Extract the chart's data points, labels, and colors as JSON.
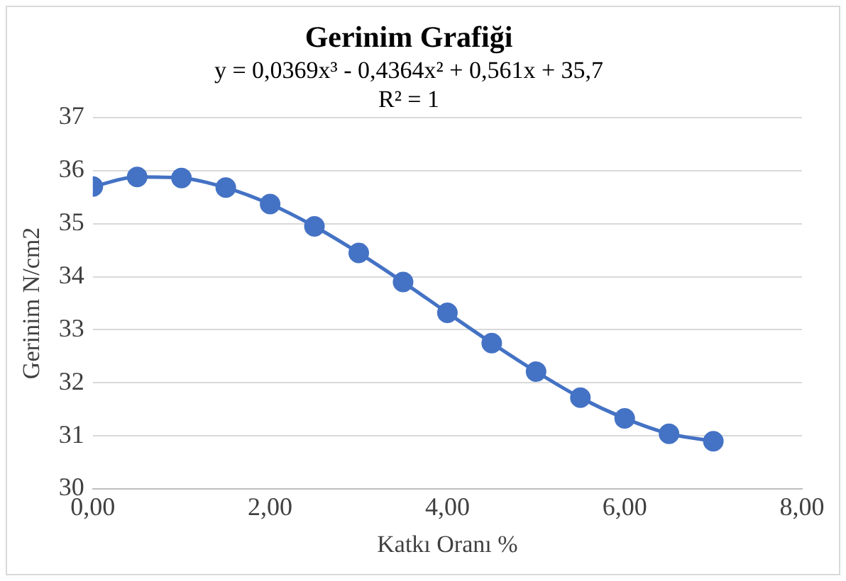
{
  "chart_data": {
    "type": "line",
    "title": "Gerinim Grafiği",
    "annotations": [
      "y = 0,0369x³ - 0,4364x² + 0,561x + 35,7",
      "R² = 1"
    ],
    "xlabel": "Katkı Oranı %",
    "ylabel": "Gerinim N/cm2",
    "x": [
      0,
      0.5,
      1,
      1.5,
      2,
      2.5,
      3,
      3.5,
      4,
      4.5,
      5,
      5.5,
      6,
      6.5,
      7
    ],
    "series": [
      {
        "color": "#4472c4",
        "values": [
          35.7,
          35.88,
          35.86,
          35.68,
          35.37,
          34.95,
          34.45,
          33.9,
          33.32,
          32.75,
          32.21,
          31.72,
          31.33,
          31.04,
          30.9
        ]
      }
    ],
    "xlim": [
      0,
      8
    ],
    "xticks": [
      {
        "value": 0,
        "label": "0,00"
      },
      {
        "value": 2,
        "label": "2,00"
      },
      {
        "value": 4,
        "label": "4,00"
      },
      {
        "value": 6,
        "label": "6,00"
      },
      {
        "value": 8,
        "label": "8,00"
      }
    ],
    "ylim": [
      30,
      37
    ],
    "yticks": [
      30,
      31,
      32,
      33,
      34,
      35,
      36,
      37
    ],
    "grid": "y",
    "legend": false,
    "marker": "circle",
    "line_style": "solid"
  }
}
